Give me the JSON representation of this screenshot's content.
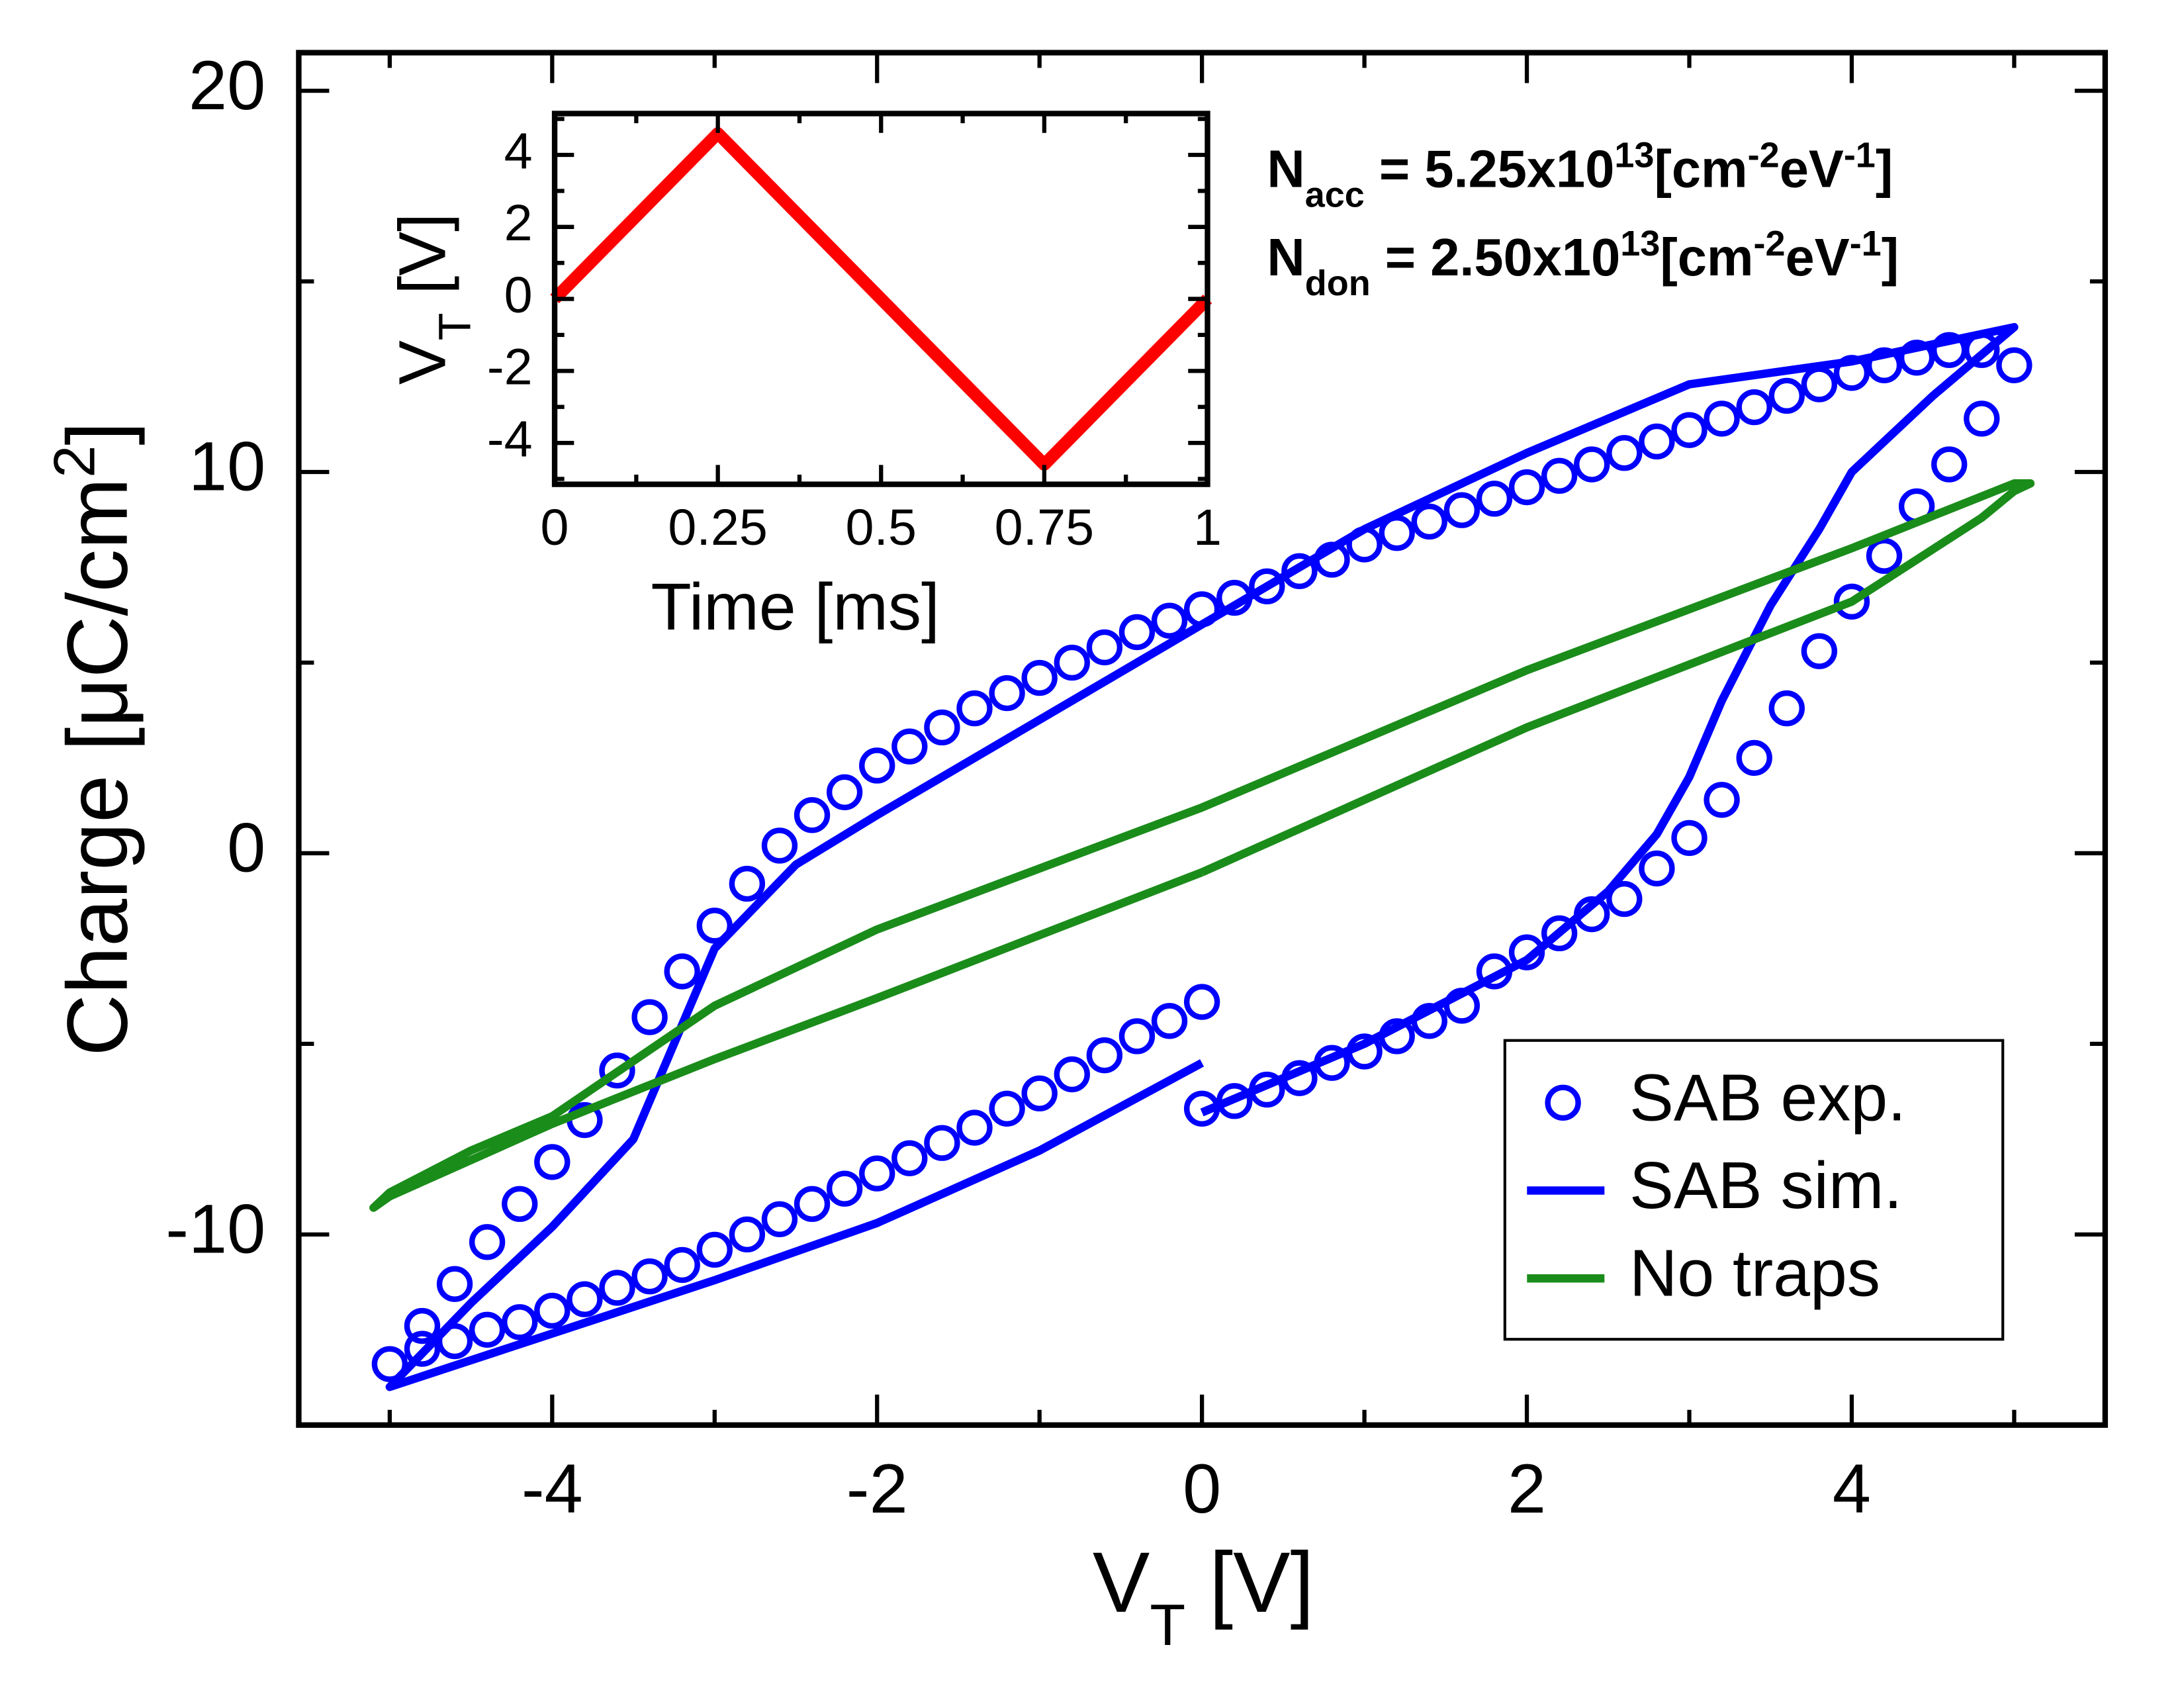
{
  "chart_data": [
    {
      "type": "line",
      "xlabel": [
        {
          "text": "V"
        },
        {
          "text": "T",
          "shift": "sub"
        },
        {
          "text": " [V]"
        }
      ],
      "ylabel": [
        {
          "text": "Charge [μC/cm"
        },
        {
          "text": "2",
          "shift": "super"
        },
        {
          "text": "]"
        }
      ],
      "xlim": [
        -5.56,
        5.56
      ],
      "ylim": [
        -15,
        21
      ],
      "xticks": [
        -4,
        -2,
        0,
        2,
        4
      ],
      "xminor": [
        -5,
        -3,
        -1,
        1,
        3,
        5
      ],
      "yticks": [
        -10,
        0,
        10,
        20
      ],
      "yminor": [
        -15,
        -5,
        5,
        15
      ],
      "legend": "lower right",
      "annotations": [
        [
          {
            "text": "N"
          },
          {
            "text": "acc",
            "shift": "sub"
          },
          {
            "text": " = 5.25x10"
          },
          {
            "text": "13",
            "shift": "super"
          },
          {
            "text": "[cm"
          },
          {
            "text": "-2",
            "shift": "super"
          },
          {
            "text": "eV"
          },
          {
            "text": "-1",
            "shift": "super"
          },
          {
            "text": "]"
          }
        ],
        [
          {
            "text": "N"
          },
          {
            "text": "don",
            "shift": "sub"
          },
          {
            "text": " = 2.50x10"
          },
          {
            "text": "13",
            "shift": "super"
          },
          {
            "text": "[cm"
          },
          {
            "text": "-2",
            "shift": "super"
          },
          {
            "text": "eV"
          },
          {
            "text": "-1",
            "shift": "super"
          },
          {
            "text": "]"
          }
        ]
      ],
      "series": [
        {
          "name": "SAB exp.",
          "color": "#0000ff",
          "style": "markers",
          "x": [
            0,
            0.2,
            0.4,
            0.6,
            0.8,
            1.0,
            1.2,
            1.4,
            1.6,
            1.8,
            2.0,
            2.2,
            2.4,
            2.6,
            2.8,
            3.0,
            3.2,
            3.4,
            3.6,
            3.8,
            4.0,
            4.2,
            4.4,
            4.6,
            4.8,
            5.0,
            4.8,
            4.6,
            4.4,
            4.2,
            4.0,
            3.8,
            3.6,
            3.4,
            3.2,
            3.0,
            2.8,
            2.6,
            2.4,
            2.2,
            2.0,
            1.8,
            1.6,
            1.4,
            1.2,
            1.0,
            0.8,
            0.6,
            0.4,
            0.2,
            0,
            -0.2,
            -0.4,
            -0.6,
            -0.8,
            -1.0,
            -1.2,
            -1.4,
            -1.6,
            -1.8,
            -2.0,
            -2.2,
            -2.4,
            -2.6,
            -2.8,
            -3.0,
            -3.2,
            -3.4,
            -3.6,
            -3.8,
            -4.0,
            -4.2,
            -4.4,
            -4.6,
            -4.8,
            -5.0,
            -4.8,
            -4.6,
            -4.4,
            -4.2,
            -4.0,
            -3.8,
            -3.6,
            -3.4,
            -3.2,
            -3.0,
            -2.8,
            -2.6,
            -2.4,
            -2.2,
            -2.0,
            -1.8,
            -1.6,
            -1.4,
            -1.2,
            -1.0,
            -0.8,
            -0.6,
            -0.4,
            -0.2,
            0
          ],
          "values": [
            -6.7,
            -6.5,
            -6.2,
            -5.9,
            -5.5,
            -5.2,
            -4.8,
            -4.4,
            -4.0,
            -3.1,
            -2.6,
            -2.1,
            -1.6,
            -1.2,
            -0.4,
            0.4,
            1.4,
            2.5,
            3.8,
            5.3,
            6.6,
            7.8,
            9.1,
            10.2,
            11.4,
            12.8,
            13.2,
            13.2,
            13.0,
            12.8,
            12.6,
            12.3,
            12.0,
            11.7,
            11.4,
            11.1,
            10.8,
            10.5,
            10.2,
            9.9,
            9.6,
            9.3,
            9.0,
            8.7,
            8.4,
            8.1,
            7.7,
            7.4,
            7.0,
            6.7,
            6.4,
            6.1,
            5.8,
            5.4,
            5.0,
            4.6,
            4.2,
            3.8,
            3.3,
            2.8,
            2.3,
            1.6,
            1.0,
            0.2,
            -0.8,
            -1.9,
            -3.1,
            -4.3,
            -5.7,
            -7.0,
            -8.1,
            -9.2,
            -10.2,
            -11.3,
            -12.4,
            -13.4,
            -13.0,
            -12.8,
            -12.5,
            -12.3,
            -12.0,
            -11.7,
            -11.4,
            -11.1,
            -10.8,
            -10.4,
            -10.0,
            -9.6,
            -9.2,
            -8.8,
            -8.4,
            -8.0,
            -7.6,
            -7.2,
            -6.7,
            -6.3,
            -5.8,
            -5.3,
            -4.8,
            -4.4,
            -3.9
          ]
        },
        {
          "name": "SAB sim.",
          "color": "#0000ff",
          "style": "line",
          "x": [
            0,
            1,
            2,
            2.5,
            2.8,
            3,
            3.2,
            3.5,
            3.8,
            4,
            4.5,
            5,
            4,
            3,
            2,
            1,
            0,
            -1,
            -2,
            -2.5,
            -3,
            -3.3,
            -3.5,
            -4,
            -4.5,
            -5,
            -4,
            -3,
            -2,
            -1,
            0
          ],
          "values": [
            -6.8,
            -5,
            -2.8,
            -1,
            0.5,
            2,
            4,
            6.5,
            8.5,
            10,
            12,
            13.8,
            12.9,
            12.3,
            10.5,
            8.5,
            6,
            3.5,
            1,
            -0.3,
            -2.5,
            -5.5,
            -7.5,
            -9.8,
            -11.8,
            -14,
            -12.6,
            -11.2,
            -9.7,
            -7.8,
            -5.5
          ]
        },
        {
          "name": "No traps",
          "color": "#1a8c1a",
          "style": "line",
          "x": [
            0,
            2,
            4,
            4.8,
            5,
            5.1,
            5,
            4,
            2,
            0,
            -1,
            -2,
            -3,
            -4,
            -4.5,
            -5,
            -5.1,
            -5,
            -4,
            -3,
            -2,
            0
          ],
          "values": [
            -0.5,
            3.3,
            6.6,
            8.8,
            9.5,
            9.7,
            9.7,
            8.0,
            4.8,
            1.2,
            -0.4,
            -2.0,
            -4.0,
            -6.9,
            -7.8,
            -8.9,
            -9.3,
            -9.0,
            -7.1,
            -5.4,
            -3.8,
            -0.5
          ]
        }
      ]
    },
    {
      "type": "line",
      "xlabel": [
        {
          "text": "Time [ms]"
        }
      ],
      "ylabel": [
        {
          "text": "V"
        },
        {
          "text": "T",
          "shift": "sub"
        },
        {
          "text": " [V]"
        }
      ],
      "xlim": [
        0,
        1
      ],
      "ylim": [
        -5.15,
        5.15
      ],
      "xticks": [
        0,
        0.25,
        0.5,
        0.75,
        1
      ],
      "xminor": [
        0.125,
        0.375,
        0.625,
        0.875
      ],
      "yticks": [
        -4,
        -2,
        0,
        2,
        4
      ],
      "yminor": [
        -5,
        -3,
        -1,
        1,
        3,
        5
      ],
      "series": [
        {
          "color": "#ff0000",
          "style": "line",
          "x": [
            0,
            0.25,
            0.75,
            1
          ],
          "values": [
            0,
            4.6,
            -4.6,
            0
          ]
        }
      ]
    }
  ]
}
